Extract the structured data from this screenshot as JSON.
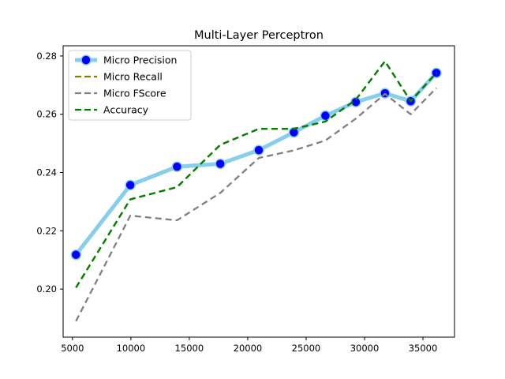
{
  "chart_data": {
    "type": "line",
    "title": "Multi-Layer Perceptron",
    "xlabel": "",
    "ylabel": "",
    "xlim": [
      4200,
      37700
    ],
    "ylim": [
      0.1835,
      0.2835
    ],
    "xticks": [
      5000,
      10000,
      15000,
      20000,
      25000,
      30000,
      35000
    ],
    "yticks": [
      0.2,
      0.22,
      0.24,
      0.26,
      0.28
    ],
    "xtick_labels": [
      "5000",
      "10000",
      "15000",
      "20000",
      "25000",
      "30000",
      "35000"
    ],
    "ytick_labels": [
      "0.20",
      "0.22",
      "0.24",
      "0.26",
      "0.28"
    ],
    "grid": false,
    "legend_position": "upper-left",
    "x": [
      5300,
      9950,
      13950,
      17650,
      20950,
      23950,
      26650,
      29250,
      31750,
      33950,
      36150
    ],
    "series": [
      {
        "name": "Micro Precision",
        "style": "solid-markers",
        "color": "#87ceeb",
        "marker_color": "#0000ff",
        "values": [
          0.2118,
          0.2357,
          0.242,
          0.243,
          0.2477,
          0.2538,
          0.2595,
          0.2642,
          0.2672,
          0.2645,
          0.2742
        ]
      },
      {
        "name": "Micro Recall",
        "style": "dashed",
        "color": "#808000",
        "values": [
          0.2005,
          0.2308,
          0.235,
          0.2495,
          0.255,
          0.255,
          0.2575,
          0.265,
          0.2782,
          0.2645,
          0.2742
        ]
      },
      {
        "name": "Micro FScore",
        "style": "dashed",
        "color": "#808080",
        "values": [
          0.189,
          0.2252,
          0.2236,
          0.233,
          0.245,
          0.2476,
          0.251,
          0.2585,
          0.267,
          0.26,
          0.269
        ]
      },
      {
        "name": "Accuracy",
        "style": "dashed",
        "color": "#008000",
        "values": [
          0.2005,
          0.2308,
          0.235,
          0.2495,
          0.255,
          0.255,
          0.2575,
          0.265,
          0.2782,
          0.2645,
          0.2742
        ]
      }
    ]
  }
}
